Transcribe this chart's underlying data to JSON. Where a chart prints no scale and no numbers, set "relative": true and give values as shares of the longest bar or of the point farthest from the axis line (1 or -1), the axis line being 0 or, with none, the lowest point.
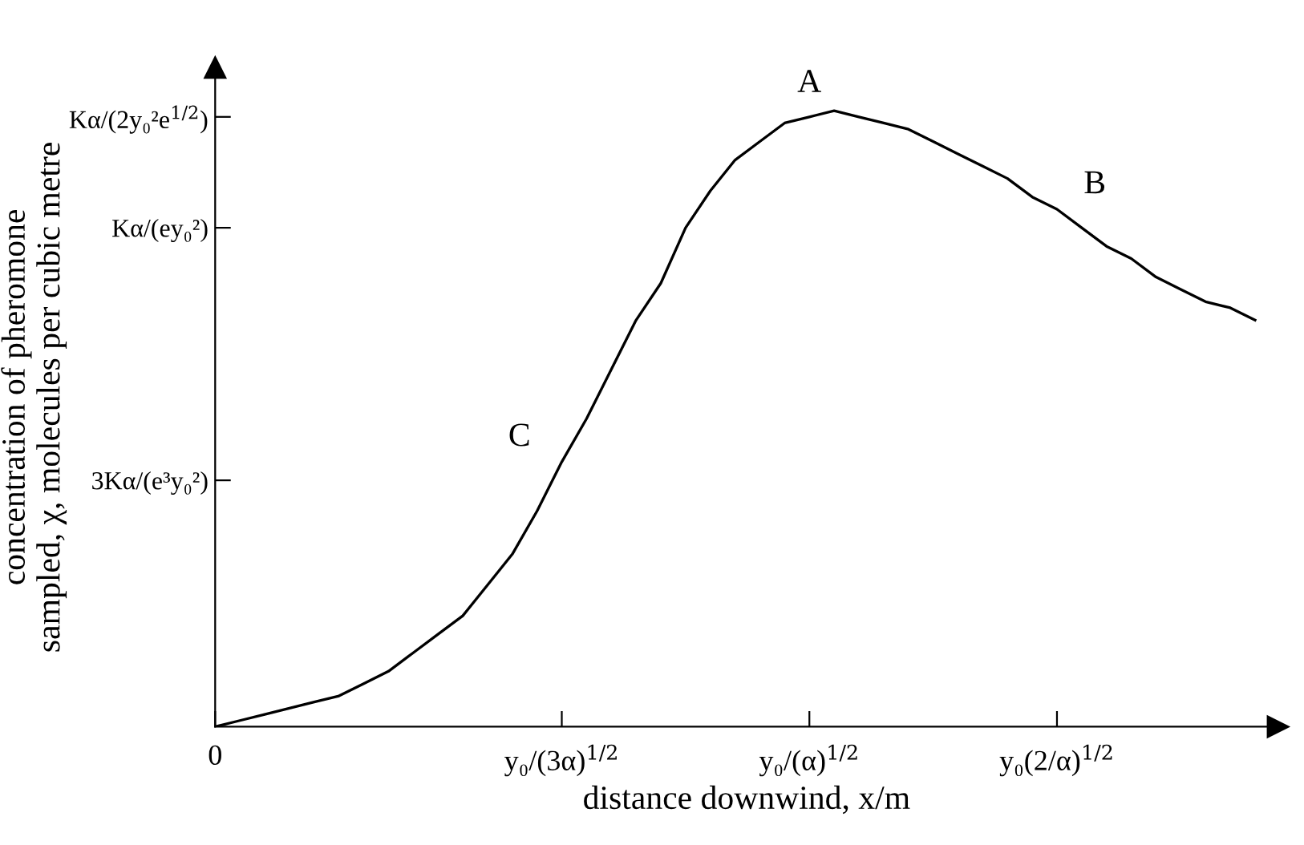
{
  "chart_data": {
    "type": "line",
    "relative": true,
    "xlabel": "distance downwind, x/m",
    "ylabel": "concentration of pheromone\nsampled, χ, molecules per cubic metre",
    "categories": [
      "0",
      null,
      null,
      null,
      null,
      null,
      null,
      null,
      null,
      null,
      null,
      null,
      null,
      null,
      "y₀/(3α)$^{1/2}$",
      null,
      null,
      null,
      null,
      null,
      null,
      null,
      null,
      null,
      "y₀/(α)$^{1/2}$",
      null,
      null,
      null,
      null,
      null,
      null,
      null,
      null,
      null,
      "y₀(2/α)$^{1/2}$",
      null,
      null,
      null,
      null,
      null,
      null,
      null,
      null
    ],
    "series": [
      {
        "color": "#000000",
        "values": [
          0,
          0.01,
          0.02,
          0.03,
          0.04,
          0.05,
          0.07,
          0.09,
          0.12,
          0.15,
          0.18,
          0.23,
          0.28,
          0.35,
          0.43,
          0.5,
          0.58,
          0.66,
          0.72,
          0.81,
          0.87,
          0.92,
          0.95,
          0.98,
          0.99,
          1,
          0.99,
          0.98,
          0.97,
          0.95,
          0.93,
          0.91,
          0.89,
          0.86,
          0.84,
          0.81,
          0.78,
          0.76,
          0.73,
          0.71,
          0.69,
          0.68,
          0.66
        ]
      }
    ],
    "ref_lines": [
      {
        "axis": "y",
        "value": 0.99,
        "label": "Kα/(2y₀²e$^{1/2}$)"
      },
      {
        "axis": "y",
        "value": 0.81,
        "label": "Kα/(ey₀²)"
      },
      {
        "axis": "y",
        "value": 0.4,
        "label": "3Kα/(e³y₀²)"
      }
    ],
    "annotations": [
      {
        "text": "A",
        "x": "y₀/(α)$^{1/2}$",
        "y": 0.99
      },
      {
        "text": "B",
        "x": "y₀(2/α)$^{1/2}$",
        "y": 0.84
      },
      {
        "text": "C",
        "x": "y₀/(3α)$^{1/2}$",
        "y": 0.43
      }
    ],
    "grid": false,
    "legend": false,
    "marker": "none",
    "line_style": "solid"
  }
}
